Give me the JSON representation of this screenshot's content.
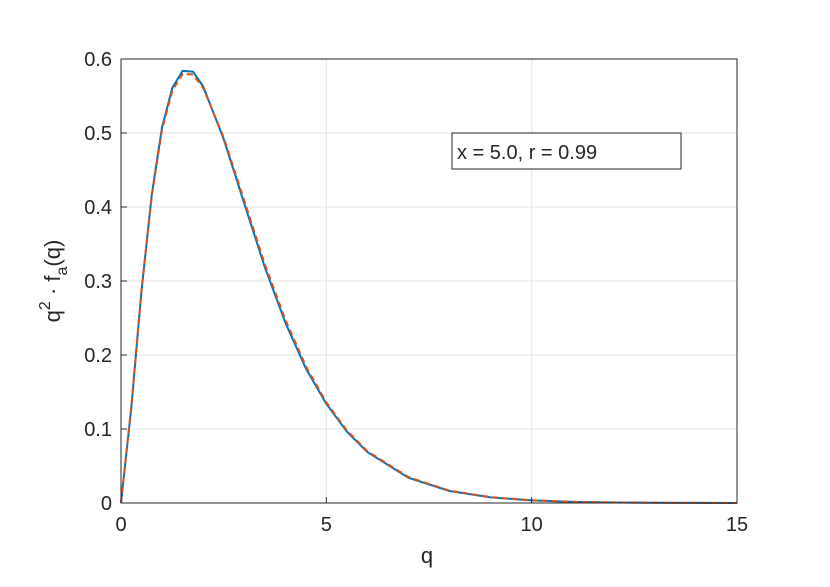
{
  "chart_data": {
    "type": "line",
    "xlabel": "q",
    "ylabel": [
      "q",
      "2",
      " · f",
      "a",
      "(q)"
    ],
    "annotation": "x = 5.0, r = 0.99",
    "x": [
      0,
      0.25,
      0.5,
      0.75,
      1,
      1.25,
      1.5,
      1.75,
      2,
      2.5,
      3,
      3.5,
      4,
      4.5,
      5,
      5.5,
      6,
      7,
      8,
      9,
      10,
      11,
      12,
      13,
      14,
      15
    ],
    "series": [
      {
        "color": "#0072bd",
        "dash": "solid",
        "values": [
          0,
          0.128,
          0.287,
          0.417,
          0.508,
          0.561,
          0.584,
          0.583,
          0.563,
          0.492,
          0.405,
          0.319,
          0.244,
          0.182,
          0.134,
          0.0965,
          0.0688,
          0.034,
          0.0162,
          0.0076,
          0.0035,
          0.0016,
          0.0007,
          0.0003,
          0.0001,
          0
        ]
      },
      {
        "color": "#d95319",
        "dash": "dashed",
        "values": [
          0,
          0.13,
          0.288,
          0.415,
          0.505,
          0.557,
          0.58,
          0.579,
          0.561,
          0.494,
          0.409,
          0.323,
          0.248,
          0.185,
          0.136,
          0.098,
          0.07,
          0.035,
          0.0167,
          0.0079,
          0.0037,
          0.0017,
          0.0008,
          0.0003,
          0.0001,
          0
        ]
      }
    ],
    "xlim": [
      0,
      15
    ],
    "xticks": [
      0,
      5,
      10,
      15
    ],
    "ylim": [
      0,
      0.6
    ],
    "yticks": [
      0,
      0.1,
      0.2,
      0.3,
      0.4,
      0.5,
      0.6
    ],
    "grid": true
  }
}
